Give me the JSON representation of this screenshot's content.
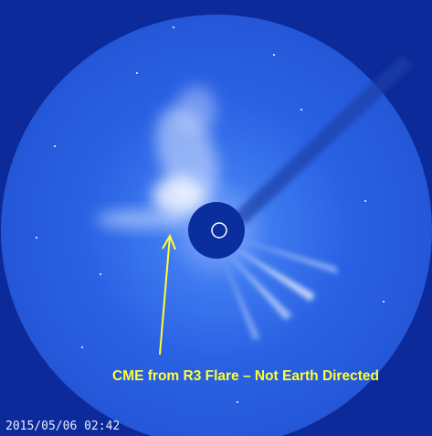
{
  "annotation": {
    "text": "CME from R3 Flare – Not Earth Directed"
  },
  "timestamp": "2015/05/06 02:42"
}
